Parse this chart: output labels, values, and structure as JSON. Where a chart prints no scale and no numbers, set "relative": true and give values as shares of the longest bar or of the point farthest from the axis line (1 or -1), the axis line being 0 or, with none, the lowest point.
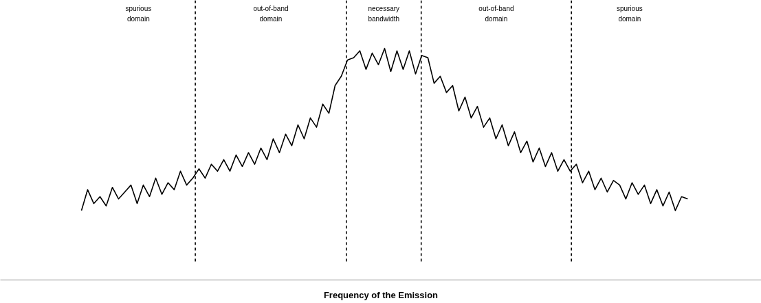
{
  "chart_data": {
    "type": "line",
    "relative": true,
    "xlabel": "Frequency of the Emission",
    "categories": [
      null,
      null,
      null,
      null,
      null,
      null,
      null,
      null,
      null,
      null,
      null,
      null,
      null,
      null,
      null,
      null,
      null,
      null,
      null,
      null,
      null,
      null,
      null,
      null,
      null,
      null,
      null,
      null,
      null,
      null,
      null,
      null,
      null,
      null,
      null,
      null,
      null,
      null,
      null,
      null,
      null,
      null,
      null,
      null,
      null,
      null,
      null,
      null,
      null,
      null,
      null,
      null,
      null,
      null,
      null,
      null,
      null,
      null,
      null,
      null,
      null,
      null,
      null,
      null,
      null,
      null,
      null,
      null,
      null,
      null,
      null,
      null,
      null,
      null,
      null,
      null,
      null,
      null,
      null,
      null,
      null,
      null,
      null,
      null,
      null,
      null,
      null,
      null,
      null,
      null,
      null,
      null,
      null,
      null,
      null,
      null,
      null,
      null,
      null
    ],
    "series": [
      {
        "color": "#000000",
        "values": [
          0.3,
          0.39,
          0.33,
          0.36,
          0.32,
          0.4,
          0.35,
          0.38,
          0.41,
          0.33,
          0.41,
          0.36,
          0.44,
          0.37,
          0.42,
          0.39,
          0.47,
          0.41,
          0.44,
          0.48,
          0.44,
          0.5,
          0.47,
          0.52,
          0.47,
          0.54,
          0.49,
          0.55,
          0.5,
          0.57,
          0.52,
          0.61,
          0.55,
          0.63,
          0.58,
          0.67,
          0.61,
          0.7,
          0.66,
          0.76,
          0.72,
          0.84,
          0.88,
          0.95,
          0.96,
          0.99,
          0.91,
          0.98,
          0.93,
          1,
          0.9,
          0.99,
          0.91,
          0.99,
          0.89,
          0.97,
          0.96,
          0.85,
          0.88,
          0.81,
          0.84,
          0.73,
          0.79,
          0.7,
          0.75,
          0.66,
          0.7,
          0.61,
          0.67,
          0.58,
          0.64,
          0.55,
          0.6,
          0.51,
          0.57,
          0.49,
          0.55,
          0.47,
          0.52,
          0.47,
          0.5,
          0.42,
          0.47,
          0.39,
          0.44,
          0.38,
          0.43,
          0.41,
          0.35,
          0.42,
          0.37,
          0.41,
          0.33,
          0.39,
          0.32,
          0.38,
          0.3,
          0.36,
          0.35
        ]
      }
    ],
    "annotations": [
      "spurious\ndomain",
      "out-of-band\ndomain",
      "necessary\nbandwidth",
      "out-of-band\ndomain",
      "spurious\ndomain"
    ],
    "grid": false,
    "tick_labels": false
  }
}
